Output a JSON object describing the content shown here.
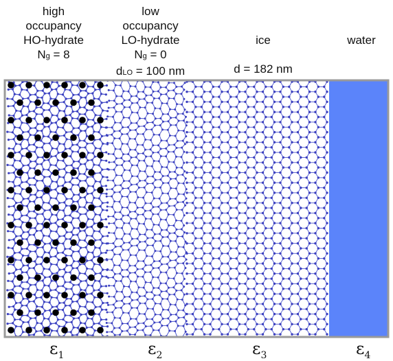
{
  "labels": {
    "ho": {
      "line1": "high",
      "line2": "occupancy",
      "line3": "HO-hydrate",
      "ng_prefix": "N",
      "ng_sub": "g",
      "ng_value": " = 8"
    },
    "lo": {
      "line1": "low",
      "line2": "occupancy",
      "line3": "LO-hydrate",
      "ng_prefix": "N",
      "ng_sub": "g",
      "ng_value": " = 0",
      "d_prefix": "d",
      "d_sub": "LO",
      "d_value": " = 100 nm"
    },
    "ice": {
      "line1": "ice",
      "line2": "d = 182 nm"
    },
    "water": {
      "line1": "water"
    }
  },
  "epsilons": [
    {
      "symbol": "ε",
      "index": "1"
    },
    {
      "symbol": "ε",
      "index": "2"
    },
    {
      "symbol": "ε",
      "index": "3"
    },
    {
      "symbol": "ε",
      "index": "4"
    }
  ],
  "colors": {
    "lattice": "#3b3fbf",
    "bond": "#4a55cc",
    "guest": "#000000",
    "water": "#5b84fa",
    "frame": "#9a9a9a"
  }
}
